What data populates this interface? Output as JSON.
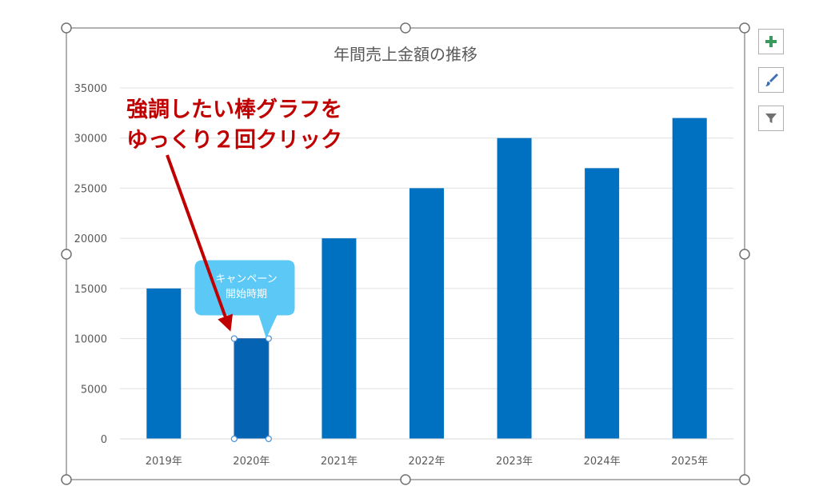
{
  "chart_data": {
    "type": "bar",
    "title": "年間売上金額の推移",
    "categories": [
      "2019年",
      "2020年",
      "2021年",
      "2022年",
      "2023年",
      "2024年",
      "2025年"
    ],
    "values": [
      15000,
      10000,
      20000,
      25000,
      30000,
      27000,
      32000
    ],
    "y_ticks": [
      "0",
      "5000",
      "10000",
      "15000",
      "20000",
      "25000",
      "30000",
      "35000"
    ],
    "ylim": [
      0,
      35000
    ],
    "grid": true,
    "legend": "none",
    "selected_category": "2020年",
    "bar_color": "#0070C0",
    "selected_bar_color": "#0563B4"
  },
  "annotations": {
    "instruction_line1": "強調したい棒グラフを",
    "instruction_line2": "ゆっくり２回クリック",
    "instruction_color": "#C00000",
    "callout_line1": "キャンペーン",
    "callout_line2": "開始時期",
    "callout_color": "#5BC8F5"
  },
  "side_buttons": {
    "add_element_icon": "plus-icon",
    "style_icon": "paintbrush-icon",
    "filter_icon": "funnel-icon",
    "accent_green": "#3A9A5B"
  }
}
